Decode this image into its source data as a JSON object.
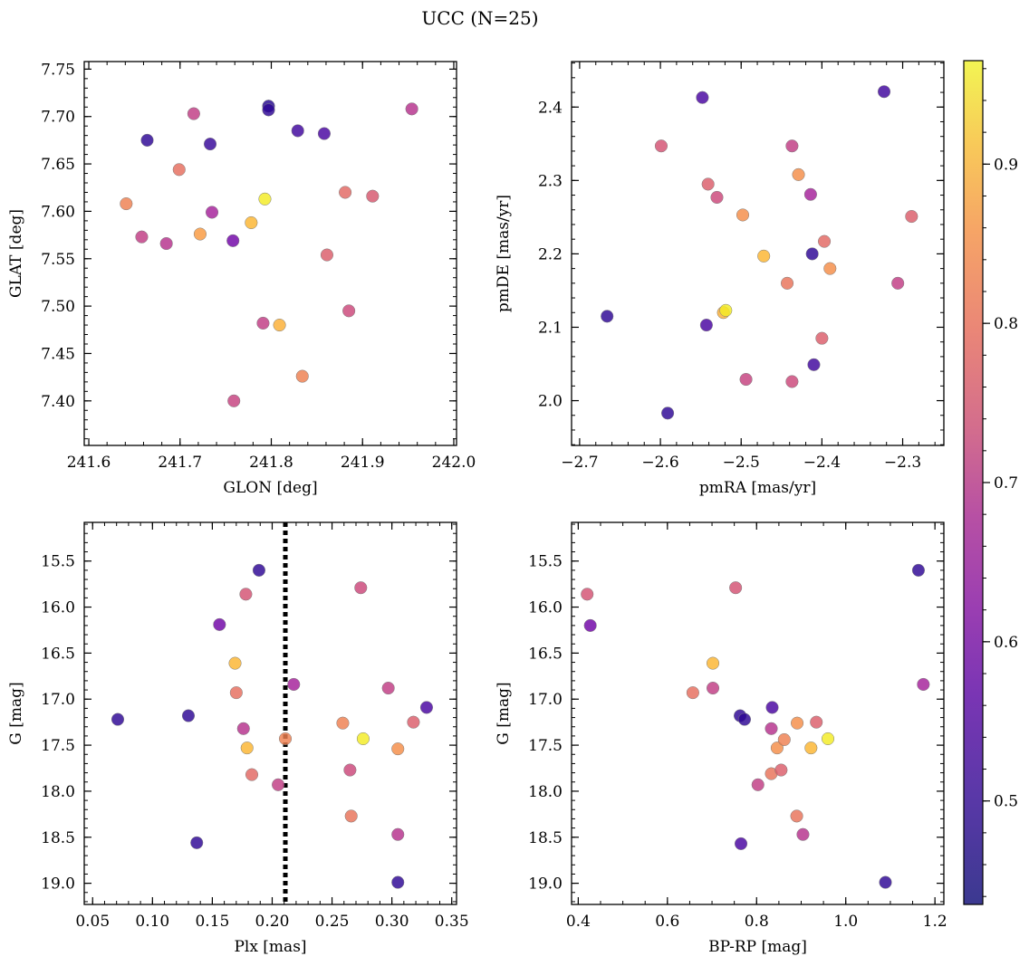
{
  "title": "UCC (N=25)",
  "chart_data": [
    {
      "type": "scatter",
      "xlabel": "GLON [deg]",
      "ylabel": "GLAT [deg]",
      "xlim": [
        241.595,
        242.003
      ],
      "ylim": [
        7.353,
        7.758
      ],
      "y_inverted": false,
      "xticks": [
        241.6,
        241.7,
        241.8,
        241.9,
        242.0
      ],
      "xtick_labels": [
        "241.6",
        "241.7",
        "241.8",
        "241.9",
        "242.0"
      ],
      "yticks": [
        7.4,
        7.45,
        7.5,
        7.55,
        7.6,
        7.65,
        7.7,
        7.75
      ],
      "ytick_labels": [
        "7.40",
        "7.45",
        "7.50",
        "7.55",
        "7.60",
        "7.65",
        "7.70",
        "7.75"
      ],
      "x": [
        241.664,
        241.733,
        241.797,
        241.797,
        241.829,
        241.858,
        241.954,
        241.715,
        241.699,
        241.641,
        241.658,
        241.685,
        241.735,
        241.722,
        241.778,
        241.793,
        241.758,
        241.759,
        241.881,
        241.911,
        241.861,
        241.791,
        241.809,
        241.885,
        241.834
      ],
      "y": [
        7.675,
        7.671,
        7.711,
        7.707,
        7.685,
        7.682,
        7.708,
        7.703,
        7.644,
        7.608,
        7.573,
        7.566,
        7.599,
        7.576,
        7.588,
        7.613,
        7.569,
        7.4,
        7.62,
        7.616,
        7.554,
        7.482,
        7.48,
        7.495,
        7.426
      ],
      "color_values": [
        0.47,
        0.48,
        0.46,
        0.47,
        0.49,
        0.5,
        0.66,
        0.68,
        0.77,
        0.8,
        0.68,
        0.66,
        0.63,
        0.84,
        0.88,
        0.95,
        0.55,
        0.69,
        0.76,
        0.73,
        0.74,
        0.68,
        0.87,
        0.7,
        0.8
      ]
    },
    {
      "type": "scatter",
      "xlabel": "pmRA [mas/yr]",
      "ylabel": "pmDE [mas/yr]",
      "xlim": [
        -2.71,
        -2.249
      ],
      "ylim": [
        1.939,
        2.462
      ],
      "y_inverted": false,
      "xticks": [
        -2.7,
        -2.6,
        -2.5,
        -2.4,
        -2.3
      ],
      "xtick_labels": [
        "−2.7",
        "−2.6",
        "−2.5",
        "−2.4",
        "−2.3"
      ],
      "yticks": [
        2.0,
        2.1,
        2.2,
        2.3,
        2.4
      ],
      "ytick_labels": [
        "2.0",
        "2.1",
        "2.2",
        "2.3",
        "2.4"
      ],
      "x": [
        -2.548,
        -2.323,
        -2.599,
        -2.437,
        -2.429,
        -2.541,
        -2.53,
        -2.498,
        -2.414,
        -2.289,
        -2.412,
        -2.472,
        -2.397,
        -2.39,
        -2.443,
        -2.306,
        -2.522,
        -2.519,
        -2.666,
        -2.543,
        -2.4,
        -2.41,
        -2.494,
        -2.437,
        -2.591
      ],
      "y": [
        2.413,
        2.421,
        2.347,
        2.347,
        2.308,
        2.295,
        2.277,
        2.253,
        2.281,
        2.251,
        2.2,
        2.197,
        2.217,
        2.18,
        2.16,
        2.16,
        2.12,
        2.123,
        2.115,
        2.103,
        2.085,
        2.049,
        2.029,
        2.026,
        1.983
      ],
      "color_values": [
        0.5,
        0.49,
        0.72,
        0.68,
        0.82,
        0.74,
        0.7,
        0.82,
        0.63,
        0.74,
        0.47,
        0.88,
        0.76,
        0.82,
        0.78,
        0.68,
        0.87,
        0.95,
        0.47,
        0.5,
        0.74,
        0.49,
        0.69,
        0.7,
        0.47
      ]
    },
    {
      "type": "scatter",
      "xlabel": "Plx [mas]",
      "ylabel": "G [mag]",
      "xlim": [
        0.043,
        0.354
      ],
      "ylim": [
        15.08,
        19.23
      ],
      "y_inverted": true,
      "xticks": [
        0.05,
        0.1,
        0.15,
        0.2,
        0.25,
        0.3,
        0.35
      ],
      "xtick_labels": [
        "0.05",
        "0.10",
        "0.15",
        "0.20",
        "0.25",
        "0.30",
        "0.35"
      ],
      "yticks": [
        15.5,
        16.0,
        16.5,
        17.0,
        17.5,
        18.0,
        18.5,
        19.0
      ],
      "ytick_labels": [
        "15.5",
        "16.0",
        "16.5",
        "17.0",
        "17.5",
        "18.0",
        "18.5",
        "19.0"
      ],
      "vline": 0.211,
      "x": [
        0.189,
        0.178,
        0.274,
        0.156,
        0.169,
        0.17,
        0.218,
        0.297,
        0.071,
        0.13,
        0.329,
        0.176,
        0.179,
        0.211,
        0.276,
        0.259,
        0.305,
        0.318,
        0.183,
        0.265,
        0.205,
        0.266,
        0.305,
        0.137,
        0.305
      ],
      "y": [
        15.6,
        15.86,
        15.79,
        16.19,
        16.61,
        16.93,
        16.84,
        16.88,
        17.22,
        17.18,
        17.09,
        17.32,
        17.53,
        17.43,
        17.43,
        17.26,
        17.54,
        17.25,
        17.82,
        17.77,
        17.93,
        18.27,
        18.47,
        18.56,
        18.99
      ],
      "color_values": [
        0.47,
        0.72,
        0.7,
        0.55,
        0.88,
        0.77,
        0.63,
        0.68,
        0.47,
        0.47,
        0.5,
        0.66,
        0.88,
        0.8,
        0.95,
        0.8,
        0.82,
        0.74,
        0.76,
        0.7,
        0.68,
        0.78,
        0.66,
        0.47,
        0.47
      ]
    },
    {
      "type": "scatter",
      "xlabel": "BP-RP [mag]",
      "ylabel": "G [mag]",
      "xlim": [
        0.385,
        1.22
      ],
      "ylim": [
        15.08,
        19.23
      ],
      "y_inverted": true,
      "xticks": [
        0.4,
        0.6,
        0.8,
        1.0,
        1.2
      ],
      "xtick_labels": [
        "0.4",
        "0.6",
        "0.8",
        "1.0",
        "1.2"
      ],
      "yticks": [
        15.5,
        16.0,
        16.5,
        17.0,
        17.5,
        18.0,
        18.5,
        19.0
      ],
      "ytick_labels": [
        "15.5",
        "16.0",
        "16.5",
        "17.0",
        "17.5",
        "18.0",
        "18.5",
        "19.0"
      ],
      "x": [
        1.163,
        0.42,
        0.753,
        0.427,
        0.702,
        0.657,
        0.702,
        1.174,
        0.763,
        0.773,
        0.835,
        0.833,
        0.846,
        0.862,
        0.96,
        0.891,
        0.922,
        0.934,
        0.833,
        0.855,
        0.803,
        0.89,
        0.904,
        0.765,
        1.089
      ],
      "y": [
        15.6,
        15.86,
        15.79,
        16.2,
        16.61,
        16.93,
        16.88,
        16.84,
        17.18,
        17.22,
        17.09,
        17.32,
        17.53,
        17.44,
        17.43,
        17.26,
        17.53,
        17.25,
        17.81,
        17.77,
        17.93,
        18.27,
        18.47,
        18.57,
        18.99
      ],
      "color_values": [
        0.47,
        0.72,
        0.72,
        0.55,
        0.88,
        0.77,
        0.68,
        0.63,
        0.47,
        0.47,
        0.5,
        0.66,
        0.82,
        0.8,
        0.95,
        0.82,
        0.88,
        0.74,
        0.78,
        0.74,
        0.68,
        0.78,
        0.66,
        0.5,
        0.47
      ]
    },
    {
      "type": "colorbar",
      "colormap": "plasma",
      "range": [
        0.435,
        0.965
      ],
      "ticks": [
        0.5,
        0.6,
        0.7,
        0.8,
        0.9
      ],
      "tick_labels": [
        "0.5",
        "0.6",
        "0.7",
        "0.8",
        "0.9"
      ]
    }
  ]
}
